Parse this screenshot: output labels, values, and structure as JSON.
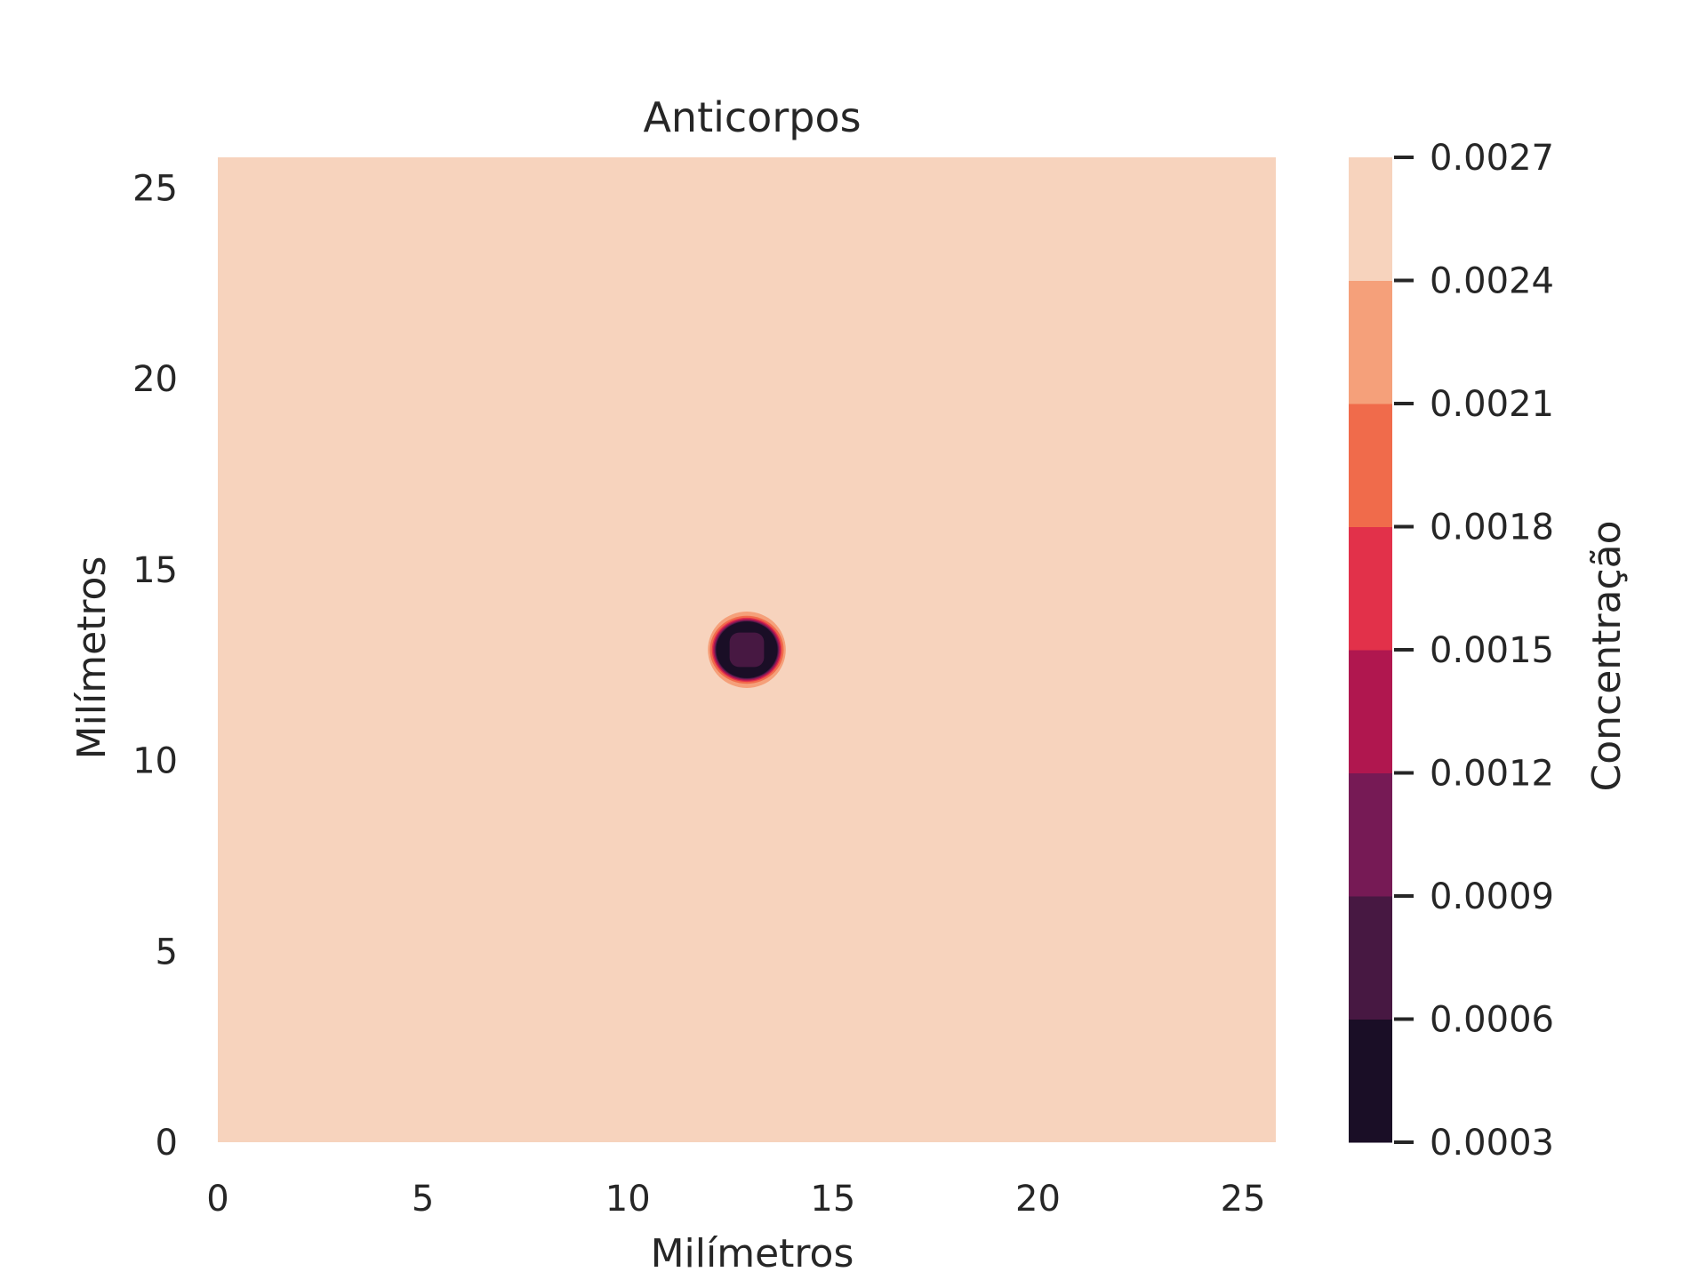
{
  "chart_data": {
    "type": "contour",
    "title": "Anticorpos",
    "xlabel": "Milímetros",
    "ylabel": "Milímetros",
    "xlim": [
      0,
      25.8
    ],
    "ylim": [
      0,
      25.8
    ],
    "xticks": [
      0,
      5,
      10,
      15,
      20,
      25
    ],
    "yticks": [
      0,
      5,
      10,
      15,
      20,
      25
    ],
    "grid": false,
    "background_level_color": "#f7d3bd",
    "features": [
      {
        "shape": "circular spot",
        "center": [
          12.9,
          12.9
        ],
        "rings": [
          {
            "radius": 0.95,
            "color": "#f5a07a"
          },
          {
            "radius": 0.9,
            "color": "#f06b4b"
          },
          {
            "radius": 0.85,
            "color": "#e2314a"
          },
          {
            "radius": 0.82,
            "color": "#b0174f"
          },
          {
            "radius": 0.79,
            "color": "#761a55"
          },
          {
            "radius": 0.77,
            "color": "#471842"
          },
          {
            "radius": 0.75,
            "color": "#1a0e26"
          },
          {
            "radius": 0.42,
            "color": "#471842"
          }
        ]
      }
    ],
    "colorbar": {
      "label": "Concentração",
      "levels": [
        0.0003,
        0.0006,
        0.0009,
        0.0012,
        0.0015,
        0.0018,
        0.0021,
        0.0024,
        0.0027
      ],
      "tick_labels": [
        "0.0003",
        "0.0006",
        "0.0009",
        "0.0012",
        "0.0015",
        "0.0018",
        "0.0021",
        "0.0024",
        "0.0027"
      ],
      "colors": [
        "#1a0e26",
        "#471842",
        "#761a55",
        "#b0174f",
        "#e2314a",
        "#f06b4b",
        "#f5a07a",
        "#f7d3bd"
      ]
    }
  }
}
